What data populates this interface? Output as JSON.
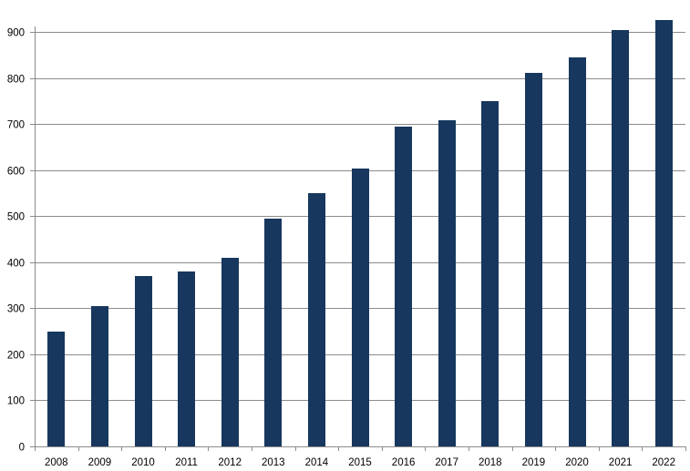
{
  "chart_data": {
    "type": "bar",
    "title": "",
    "xlabel": "",
    "ylabel": "",
    "categories": [
      "2008",
      "2009",
      "2010",
      "2011",
      "2012",
      "2013",
      "2014",
      "2015",
      "2016",
      "2017",
      "2018",
      "2019",
      "2020",
      "2021",
      "2022"
    ],
    "values": [
      250,
      305,
      370,
      380,
      410,
      495,
      550,
      603,
      695,
      708,
      750,
      810,
      845,
      903,
      925
    ],
    "ylim": [
      0,
      900
    ],
    "yticks": [
      0,
      100,
      200,
      300,
      400,
      500,
      600,
      700,
      800,
      900
    ],
    "grid": true,
    "legend": "none",
    "bar_color": "#17375e",
    "grid_color": "#8c8c8c"
  }
}
